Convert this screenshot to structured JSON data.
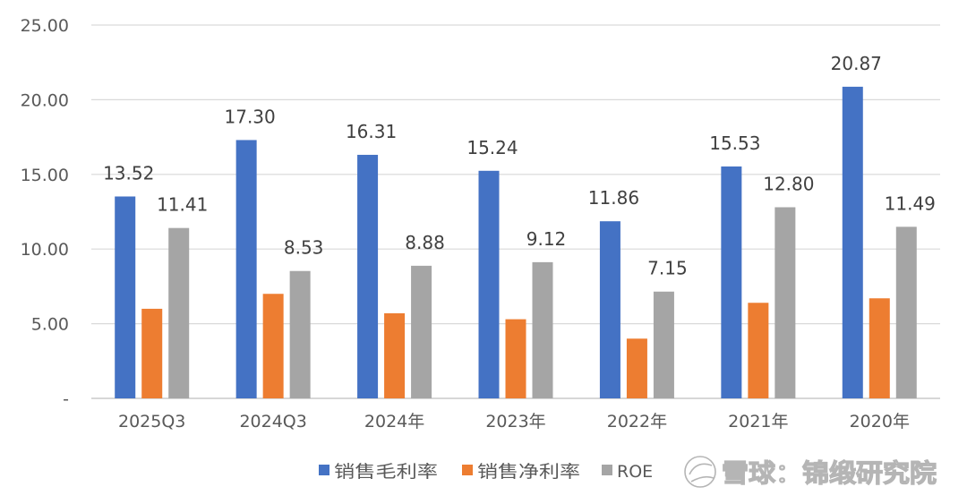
{
  "chart_data": {
    "type": "bar",
    "categories": [
      "2025Q3",
      "2024Q3",
      "2024年",
      "2023年",
      "2022年",
      "2021年",
      "2020年"
    ],
    "series": [
      {
        "name": "销售毛利率",
        "color": "#4472C4",
        "values": [
          13.52,
          17.3,
          16.31,
          15.24,
          11.86,
          15.53,
          20.87
        ],
        "labels": [
          "13.52",
          "17.30",
          "16.31",
          "15.24",
          "11.86",
          "15.53",
          "20.87"
        ]
      },
      {
        "name": "销售净利率",
        "color": "#ED7D31",
        "values": [
          6.0,
          7.0,
          5.7,
          5.3,
          4.0,
          6.4,
          6.7
        ]
      },
      {
        "name": "ROE",
        "color": "#A5A5A5",
        "values": [
          11.41,
          8.53,
          8.88,
          9.12,
          7.15,
          12.8,
          11.49
        ],
        "labels": [
          "11.41",
          "8.53",
          "8.88",
          "9.12",
          "7.15",
          "12.80",
          "11.49"
        ]
      }
    ],
    "ylim": [
      0,
      25
    ],
    "ytick_values": [
      0,
      5,
      10,
      15,
      20,
      25
    ],
    "ytick_labels": [
      "-",
      "5.00",
      "10.00",
      "15.00",
      "20.00",
      "25.00"
    ],
    "grid": true,
    "legend": "bottom"
  },
  "watermark": {
    "text": "雪球：锦缎研究院",
    "icon": "snowball-logo-icon"
  }
}
